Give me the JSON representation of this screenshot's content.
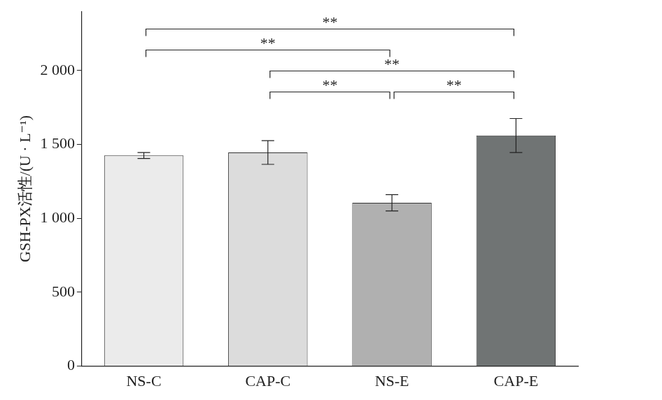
{
  "chart_data": {
    "type": "bar",
    "y_label": "GSH-PX活性/(U · L⁻¹)",
    "categories": [
      "NS-C",
      "CAP-C",
      "NS-E",
      "CAP-E"
    ],
    "values": [
      1425,
      1445,
      1105,
      1560
    ],
    "errors": [
      20,
      80,
      55,
      115
    ],
    "colors": [
      "#ebebeb",
      "#dcdcdc",
      "#b0b0b0",
      "#707474"
    ],
    "ylim": [
      0,
      2400
    ],
    "yticks": [
      0,
      500,
      {
        "value": 1000,
        "label": "1 000"
      },
      {
        "value": 1500,
        "label": "1 500"
      },
      {
        "value": 2000,
        "label": "2 000"
      }
    ],
    "grid": false,
    "annotations": [
      {
        "from": "CAP-C",
        "to": "NS-E",
        "label": "**"
      },
      {
        "from": "NS-E",
        "to": "CAP-E",
        "label": "**"
      },
      {
        "from": "CAP-C",
        "to": "CAP-E",
        "label": "**"
      },
      {
        "from": "NS-C",
        "to": "NS-E",
        "label": "**"
      },
      {
        "from": "NS-C",
        "to": "CAP-E",
        "label": "**"
      }
    ]
  }
}
